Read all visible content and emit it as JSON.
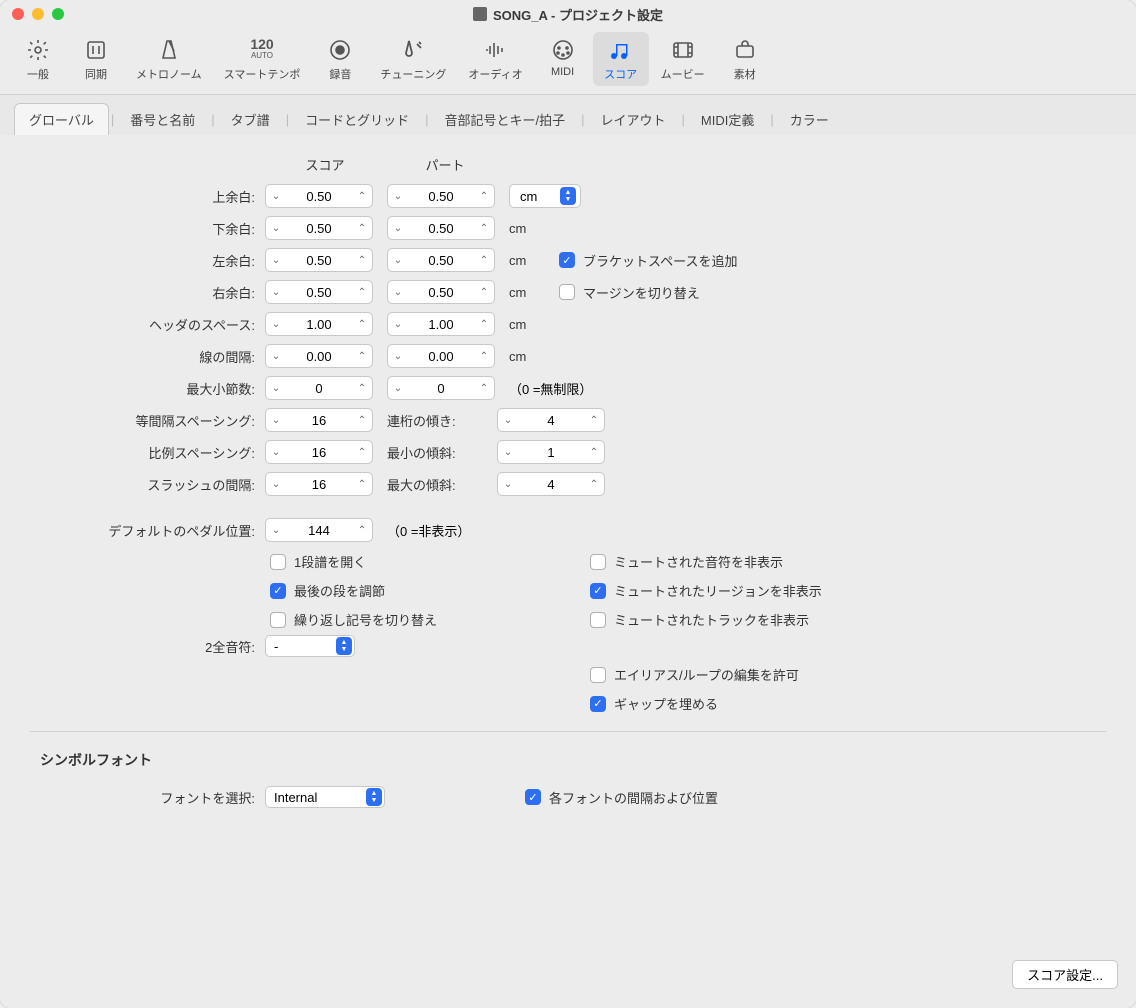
{
  "window": {
    "title": "SONG_A - プロジェクト設定"
  },
  "toolbar": [
    {
      "label": "一般"
    },
    {
      "label": "同期"
    },
    {
      "label": "メトロノーム"
    },
    {
      "label": "スマートテンポ",
      "sublabel": "120",
      "sublabel2": "AUTO"
    },
    {
      "label": "録音"
    },
    {
      "label": "チューニング"
    },
    {
      "label": "オーディオ"
    },
    {
      "label": "MIDI"
    },
    {
      "label": "スコア",
      "active": true
    },
    {
      "label": "ムービー"
    },
    {
      "label": "素材"
    }
  ],
  "subtabs": [
    "グローバル",
    "番号と名前",
    "タブ譜",
    "コードとグリッド",
    "音部記号とキー/拍子",
    "レイアウト",
    "MIDI定義",
    "カラー"
  ],
  "subtabActive": 0,
  "colHeaders": {
    "score": "スコア",
    "part": "パート"
  },
  "unitSelect": "cm",
  "margins": [
    {
      "label": "上余白:",
      "score": "0.50",
      "part": "0.50",
      "showUnitSelect": true
    },
    {
      "label": "下余白:",
      "score": "0.50",
      "part": "0.50",
      "unit": "cm"
    },
    {
      "label": "左余白:",
      "score": "0.50",
      "part": "0.50",
      "unit": "cm",
      "check": {
        "label": "ブラケットスペースを追加",
        "checked": true
      }
    },
    {
      "label": "右余白:",
      "score": "0.50",
      "part": "0.50",
      "unit": "cm",
      "check": {
        "label": "マージンを切り替え",
        "checked": false
      }
    },
    {
      "label": "ヘッダのスペース:",
      "score": "1.00",
      "part": "1.00",
      "unit": "cm"
    },
    {
      "label": "線の間隔:",
      "score": "0.00",
      "part": "0.00",
      "unit": "cm"
    },
    {
      "label": "最大小節数:",
      "score": "0",
      "part": "0",
      "note": "（0 =無制限）"
    }
  ],
  "spacing": [
    {
      "label": "等間隔スペーシング:",
      "val": "16",
      "rlabel": "連桁の傾き:",
      "rval": "4"
    },
    {
      "label": "比例スペーシング:",
      "val": "16",
      "rlabel": "最小の傾斜:",
      "rval": "1"
    },
    {
      "label": "スラッシュの間隔:",
      "val": "16",
      "rlabel": "最大の傾斜:",
      "rval": "4"
    }
  ],
  "pedal": {
    "label": "デフォルトのペダル位置:",
    "val": "144",
    "note": "（0 =非表示）"
  },
  "checksLeft": [
    {
      "label": "1段譜を開く",
      "checked": false
    },
    {
      "label": "最後の段を調節",
      "checked": true
    },
    {
      "label": "繰り返し記号を切り替え",
      "checked": false
    }
  ],
  "checksRight": [
    {
      "label": "ミュートされた音符を非表示",
      "checked": false
    },
    {
      "label": "ミュートされたリージョンを非表示",
      "checked": true
    },
    {
      "label": "ミュートされたトラックを非表示",
      "checked": false
    }
  ],
  "wholeNote": {
    "label": "2全音符:",
    "value": "-"
  },
  "checksBottom": [
    {
      "label": "エイリアス/ループの編集を許可",
      "checked": false
    },
    {
      "label": "ギャップを埋める",
      "checked": true
    }
  ],
  "symbolFont": {
    "title": "シンボルフォント",
    "selectLabel": "フォントを選択:",
    "selectValue": "Internal",
    "check": {
      "label": "各フォントの間隔および位置",
      "checked": true
    }
  },
  "footerButton": "スコア設定..."
}
